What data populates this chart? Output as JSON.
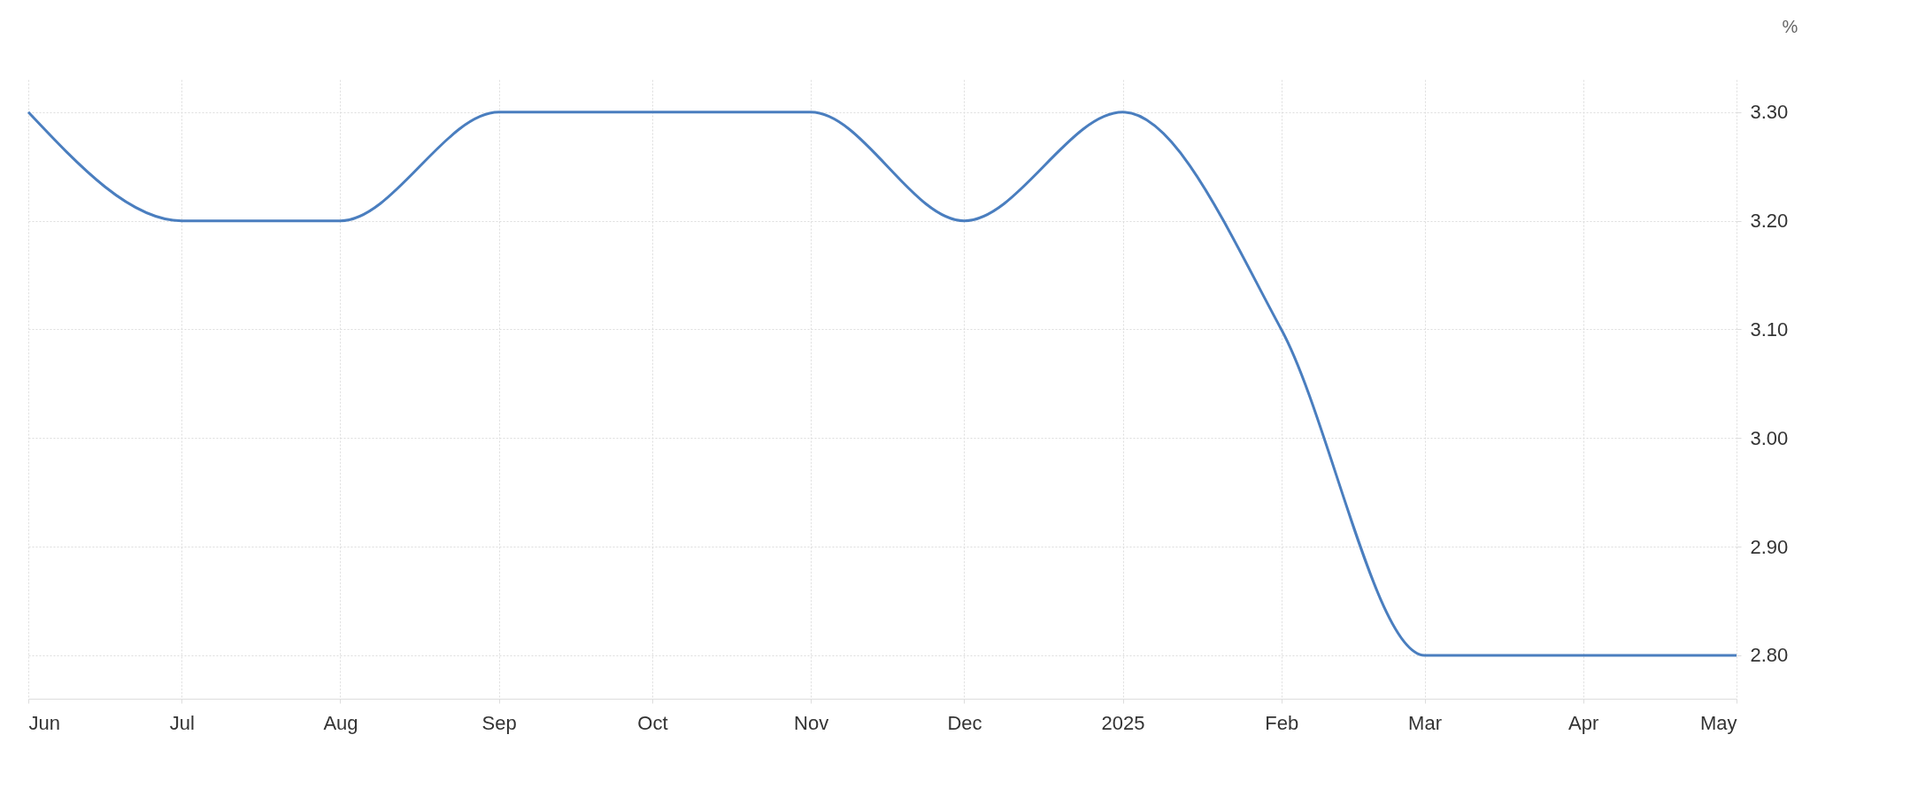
{
  "chart_data": {
    "type": "line",
    "ylabel": "%",
    "x": [
      "2024-06",
      "2024-07",
      "2024-08",
      "2024-09",
      "2024-10",
      "2024-11",
      "2024-12",
      "2025-01",
      "2025-02",
      "2025-03",
      "2025-04",
      "2025-05"
    ],
    "series": [
      {
        "color": "#4a7ebf",
        "values": [
          3.3,
          3.2,
          3.2,
          3.3,
          3.3,
          3.3,
          3.2,
          3.3,
          3.1,
          2.8,
          2.8,
          2.8
        ]
      }
    ],
    "xlim": [
      "2024-06",
      "2025-05"
    ],
    "xticks": [
      {
        "value": "2024-06",
        "label": "Jun"
      },
      {
        "value": "2024-07",
        "label": "Jul"
      },
      {
        "value": "2024-08",
        "label": "Aug"
      },
      {
        "value": "2024-09",
        "label": "Sep"
      },
      {
        "value": "2024-10",
        "label": "Oct"
      },
      {
        "value": "2024-11",
        "label": "Nov"
      },
      {
        "value": "2024-12",
        "label": "Dec"
      },
      {
        "value": "2025-01",
        "label": "2025"
      },
      {
        "value": "2025-02",
        "label": "Feb"
      },
      {
        "value": "2025-03",
        "label": "Mar"
      },
      {
        "value": "2025-04",
        "label": "Apr"
      },
      {
        "value": "2025-05",
        "label": "May"
      }
    ],
    "ylim": [
      2.76,
      3.33
    ],
    "yticks": [
      {
        "value": 2.8,
        "label": "2.80"
      },
      {
        "value": 2.9,
        "label": "2.90"
      },
      {
        "value": 3.0,
        "label": "3.00"
      },
      {
        "value": 3.1,
        "label": "3.10"
      },
      {
        "value": 3.2,
        "label": "3.20"
      },
      {
        "value": 3.3,
        "label": "3.30"
      }
    ],
    "grid": true,
    "marker": "none",
    "line_style": "solid"
  }
}
